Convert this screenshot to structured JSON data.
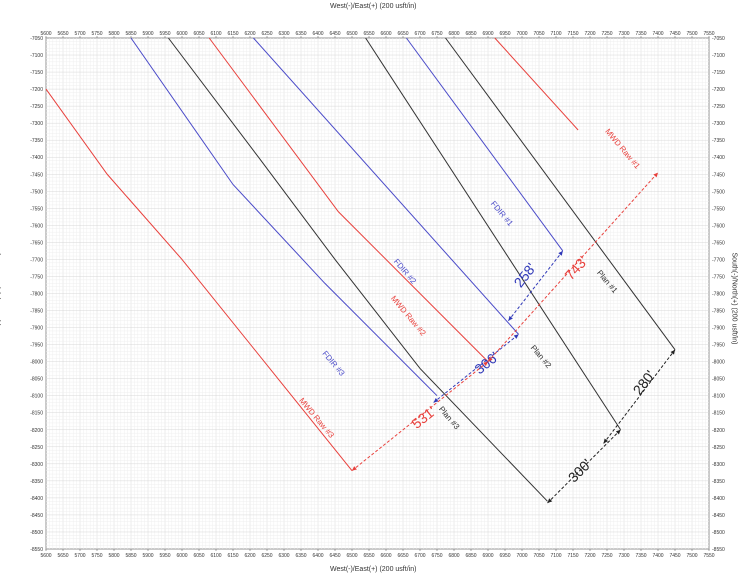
{
  "chart_data": {
    "type": "line",
    "xlabel": "West(-)/East(+) (200 usft/in)",
    "ylabel": "South(-)/North(+) (200 usft/in)",
    "xlim": [
      5600,
      7550
    ],
    "ylim": [
      -8550,
      -7050
    ],
    "x_ticks": [
      5600,
      5650,
      5700,
      5750,
      5800,
      5850,
      5900,
      5950,
      6000,
      6050,
      6100,
      6150,
      6200,
      6250,
      6300,
      6350,
      6400,
      6450,
      6500,
      6550,
      6600,
      6650,
      6700,
      6750,
      6800,
      6850,
      6900,
      6950,
      7000,
      7050,
      7100,
      7150,
      7200,
      7250,
      7300,
      7350,
      7400,
      7450,
      7500,
      7550
    ],
    "y_ticks": [
      -7050,
      -7100,
      -7150,
      -7200,
      -7250,
      -7300,
      -7350,
      -7400,
      -7450,
      -7500,
      -7550,
      -7600,
      -7650,
      -7700,
      -7750,
      -7800,
      -7850,
      -7900,
      -7950,
      -8000,
      -8050,
      -8100,
      -8150,
      -8200,
      -8250,
      -8300,
      -8350,
      -8400,
      -8450,
      -8500,
      -8550
    ],
    "grid": true,
    "colors": {
      "plan": "#333333",
      "fdir": "#4a4ac8",
      "mwd": "#e8403c",
      "dim_black": "#222222",
      "dim_blue": "#2f38b8",
      "dim_red": "#e8403c"
    },
    "series": [
      {
        "name": "Plan #1",
        "color": "#333333",
        "x": [
          6775,
          7450
        ],
        "y": [
          -7050,
          -7965
        ]
      },
      {
        "name": "Plan #2",
        "color": "#333333",
        "x": [
          6540,
          7290
        ],
        "y": [
          -7050,
          -8200
        ]
      },
      {
        "name": "Plan #3",
        "color": "#333333",
        "x": [
          5960,
          6225,
          6450,
          6700,
          7075
        ],
        "y": [
          -7050,
          -7400,
          -7700,
          -8020,
          -8410
        ]
      },
      {
        "name": "FDIR #1",
        "color": "#4a4ac8",
        "x": [
          6660,
          7120
        ],
        "y": [
          -7050,
          -7675
        ]
      },
      {
        "name": "FDIR #2",
        "color": "#4a4ac8",
        "x": [
          6210,
          6990
        ],
        "y": [
          -7050,
          -7920
        ]
      },
      {
        "name": "FDIR #3",
        "color": "#4a4ac8",
        "x": [
          5850,
          6150,
          6420,
          6750
        ],
        "y": [
          -7050,
          -7480,
          -7770,
          -8100
        ]
      },
      {
        "name": "MWD Raw #1",
        "color": "#e8403c",
        "x": [
          6920,
          7165
        ],
        "y": [
          -7050,
          -7320
        ]
      },
      {
        "name": "MWD Raw #2",
        "color": "#e8403c",
        "x": [
          6080,
          6460,
          6900
        ],
        "y": [
          -7050,
          -7560,
          -8000
        ]
      },
      {
        "name": "MWD Raw #3",
        "color": "#e8403c",
        "x": [
          5600,
          5780,
          6000,
          6500
        ],
        "y": [
          -7200,
          -7450,
          -7700,
          -8320
        ]
      }
    ],
    "series_labels": [
      {
        "text": "Plan #1",
        "x": 7245,
        "y": -7770,
        "color": "#333333"
      },
      {
        "text": "Plan #2",
        "x": 7050,
        "y": -7990,
        "color": "#333333"
      },
      {
        "text": "Plan #3",
        "x": 6780,
        "y": -8170,
        "color": "#333333"
      },
      {
        "text": "FDIR #1",
        "x": 6935,
        "y": -7570,
        "color": "#4a4ac8"
      },
      {
        "text": "FDIR #2",
        "x": 6650,
        "y": -7740,
        "color": "#4a4ac8"
      },
      {
        "text": "FDIR #3",
        "x": 6440,
        "y": -8010,
        "color": "#4a4ac8"
      },
      {
        "text": "MWD Raw #1",
        "x": 7290,
        "y": -7380,
        "color": "#e8403c"
      },
      {
        "text": "MWD Raw #2",
        "x": 6660,
        "y": -7870,
        "color": "#e8403c"
      },
      {
        "text": "MWD Raw #3",
        "x": 6390,
        "y": -8170,
        "color": "#e8403c"
      }
    ],
    "dimensions": [
      {
        "label": "280'",
        "color": "#222222",
        "x1": 7240,
        "y1": -8240,
        "x2": 7450,
        "y2": -7965,
        "lx": 7370,
        "ly": -8070
      },
      {
        "label": "300'",
        "color": "#222222",
        "x1": 7075,
        "y1": -8415,
        "x2": 7290,
        "y2": -8200,
        "lx": 7180,
        "ly": -8330
      },
      {
        "label": "258'",
        "color": "#2f38b8",
        "x1": 6960,
        "y1": -7880,
        "x2": 7120,
        "y2": -7675,
        "lx": 7020,
        "ly": -7755
      },
      {
        "label": "306'",
        "color": "#2f38b8",
        "x1": 6740,
        "y1": -8120,
        "x2": 6990,
        "y2": -7920,
        "lx": 6905,
        "ly": -8015
      },
      {
        "label": "743'",
        "color": "#e8403c",
        "x1": 6900,
        "y1": -8000,
        "x2": 7400,
        "y2": -7445,
        "lx": 7170,
        "ly": -7735
      },
      {
        "label": "531'",
        "color": "#e8403c",
        "x1": 6500,
        "y1": -8320,
        "x2": 6900,
        "y2": -8000,
        "lx": 6720,
        "ly": -8175
      }
    ]
  }
}
